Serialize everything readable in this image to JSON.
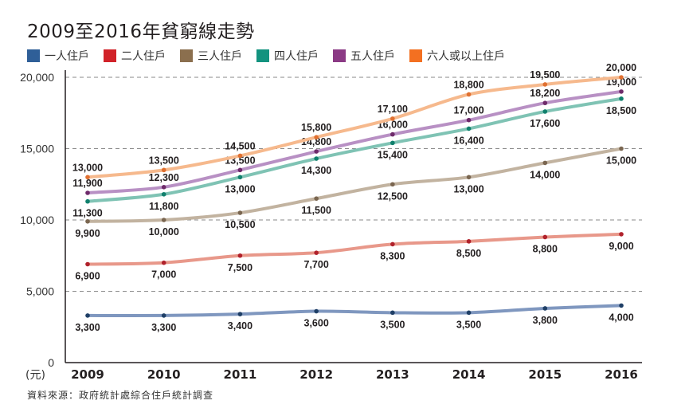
{
  "chart_data": {
    "type": "line",
    "title": "2009至2016年貧窮線走勢",
    "xlabel": "",
    "ylabel": "(元)",
    "x": [
      "2009",
      "2010",
      "2011",
      "2012",
      "2013",
      "2014",
      "2015",
      "2016"
    ],
    "ylim": [
      0,
      20000
    ],
    "yticks": [
      0,
      5000,
      10000,
      15000,
      20000
    ],
    "ytick_labels": [
      "0",
      "5,000",
      "10,000",
      "15,000",
      "20,000"
    ],
    "grid": "horizontal-dashed",
    "legend_position": "top-left",
    "series": [
      {
        "name": "一人住戶",
        "color": "#2f5f98",
        "line_color": "#7f97bf",
        "dot_color": "#1f3f66",
        "label_pos": "below",
        "values": [
          3300,
          3300,
          3400,
          3600,
          3500,
          3500,
          3800,
          4000
        ],
        "labels": [
          "3,300",
          "3,300",
          "3,400",
          "3,600",
          "3,500",
          "3,500",
          "3,800",
          "4,000"
        ]
      },
      {
        "name": "二人住戶",
        "color": "#d12229",
        "line_color": "#e8988a",
        "dot_color": "#b0212b",
        "label_pos": "below",
        "values": [
          6900,
          7000,
          7500,
          7700,
          8300,
          8500,
          8800,
          9000
        ],
        "labels": [
          "6,900",
          "7,000",
          "7,500",
          "7,700",
          "8,300",
          "8,500",
          "8,800",
          "9,000"
        ]
      },
      {
        "name": "三人住戶",
        "color": "#8b6f4e",
        "line_color": "#c2b3a0",
        "dot_color": "#7a6650",
        "label_pos": "below",
        "values": [
          9900,
          10000,
          10500,
          11500,
          12500,
          13000,
          14000,
          15000
        ],
        "labels": [
          "9,900",
          "10,000",
          "10,500",
          "11,500",
          "12,500",
          "13,000",
          "14,000",
          "15,000"
        ]
      },
      {
        "name": "四人住戶",
        "color": "#13937f",
        "line_color": "#7fc3b4",
        "dot_color": "#10806d",
        "label_pos": "below",
        "values": [
          11300,
          11800,
          13000,
          14300,
          15400,
          16400,
          17600,
          18500
        ],
        "labels": [
          "11,300",
          "11,800",
          "13,000",
          "14,300",
          "15,400",
          "16,400",
          "17,600",
          "18,500"
        ]
      },
      {
        "name": "五人住戶",
        "color": "#8b3a85",
        "line_color": "#b890c4",
        "dot_color": "#6e2a6a",
        "label_pos": "above",
        "values": [
          11900,
          12300,
          13500,
          14800,
          16000,
          17000,
          18200,
          19000
        ],
        "labels": [
          "11,900",
          "12,300",
          "13,500",
          "14,800",
          "16,000",
          "17,000",
          "18,200",
          "19,000"
        ]
      },
      {
        "name": "六人或以上住戶",
        "color": "#f37021",
        "line_color": "#f6b98d",
        "dot_color": "#e07030",
        "label_pos": "above",
        "values": [
          13000,
          13500,
          14500,
          15800,
          17100,
          18800,
          19500,
          20000
        ],
        "labels": [
          "13,000",
          "13,500",
          "14,500",
          "15,800",
          "17,100",
          "18,800",
          "19,500",
          "20,000"
        ]
      }
    ],
    "source": "資料來源：政府統計處綜合住戶統計調查"
  },
  "unit": "(元)",
  "source_note": "資料來源：政府統計處綜合住戶統計調查"
}
